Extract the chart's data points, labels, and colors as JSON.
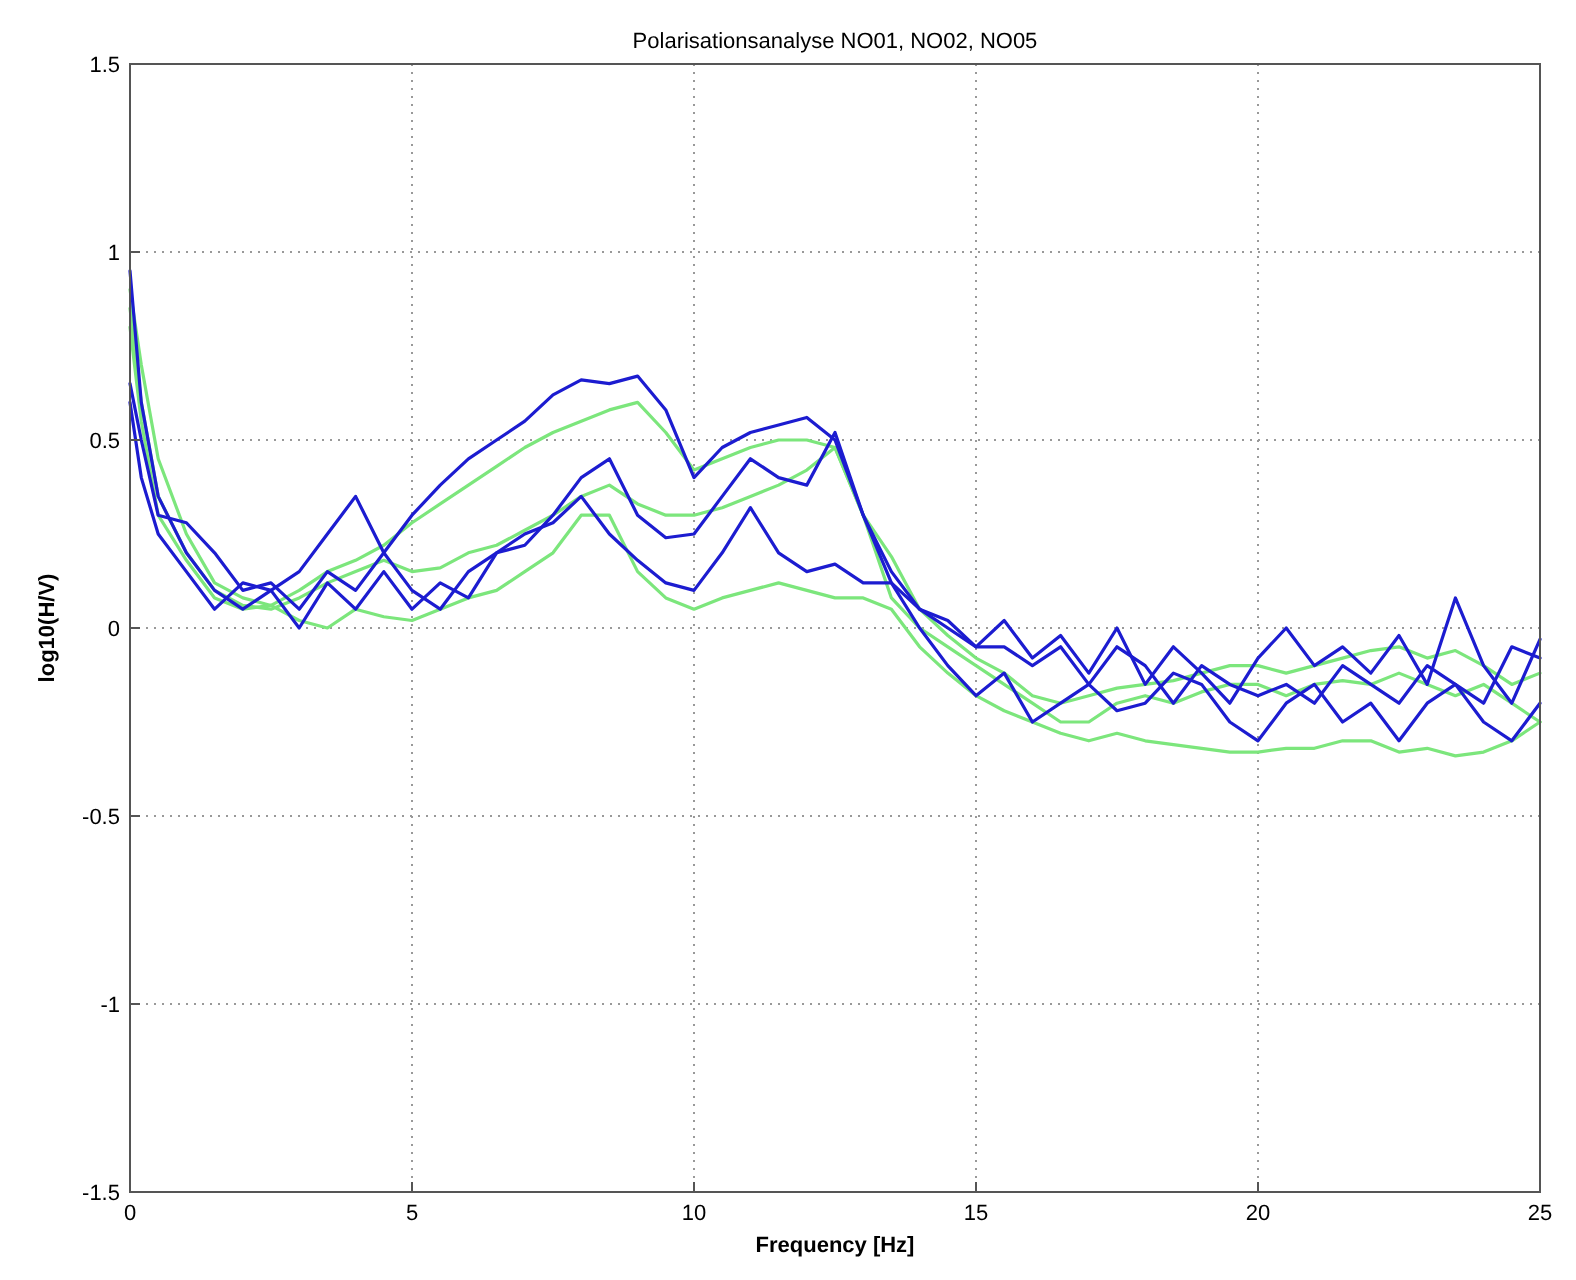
{
  "chart_data": {
    "type": "line",
    "title": "Polarisationsanalyse NO01, NO02, NO05",
    "xlabel": "Frequency [Hz]",
    "ylabel": "log10(H/V)",
    "x": [
      0,
      0.2,
      0.5,
      1,
      1.5,
      2,
      2.5,
      3,
      3.5,
      4,
      4.5,
      5,
      5.5,
      6,
      6.5,
      7,
      7.5,
      8,
      8.5,
      9,
      9.5,
      10,
      10.5,
      11,
      11.5,
      12,
      12.5,
      13,
      13.5,
      14,
      14.5,
      15,
      15.5,
      16,
      16.5,
      17,
      17.5,
      18,
      18.5,
      19,
      19.5,
      20,
      20.5,
      21,
      21.5,
      22,
      22.5,
      23,
      23.5,
      24,
      24.5,
      25
    ],
    "series": [
      {
        "color": "#7ce67c",
        "values": [
          0.9,
          0.7,
          0.45,
          0.25,
          0.12,
          0.08,
          0.06,
          0.1,
          0.15,
          0.18,
          0.22,
          0.28,
          0.33,
          0.38,
          0.43,
          0.48,
          0.52,
          0.55,
          0.58,
          0.6,
          0.52,
          0.42,
          0.45,
          0.48,
          0.5,
          0.5,
          0.48,
          0.3,
          0.19,
          0.05,
          -0.02,
          -0.08,
          -0.12,
          -0.18,
          -0.2,
          -0.18,
          -0.16,
          -0.15,
          -0.14,
          -0.12,
          -0.1,
          -0.1,
          -0.12,
          -0.1,
          -0.08,
          -0.06,
          -0.05,
          -0.08,
          -0.06,
          -0.1,
          -0.15,
          -0.12
        ]
      },
      {
        "color": "#7ce67c",
        "values": [
          0.85,
          0.6,
          0.35,
          0.2,
          0.1,
          0.06,
          0.05,
          0.08,
          0.12,
          0.15,
          0.18,
          0.15,
          0.16,
          0.2,
          0.22,
          0.26,
          0.3,
          0.35,
          0.38,
          0.33,
          0.3,
          0.3,
          0.32,
          0.35,
          0.38,
          0.42,
          0.48,
          0.3,
          0.08,
          0,
          -0.05,
          -0.1,
          -0.15,
          -0.2,
          -0.25,
          -0.25,
          -0.2,
          -0.18,
          -0.2,
          -0.17,
          -0.15,
          -0.15,
          -0.18,
          -0.15,
          -0.14,
          -0.15,
          -0.12,
          -0.15,
          -0.18,
          -0.15,
          -0.2,
          -0.25
        ]
      },
      {
        "color": "#7ce67c",
        "values": [
          0.8,
          0.55,
          0.3,
          0.18,
          0.08,
          0.05,
          0.06,
          0.02,
          0,
          0.05,
          0.03,
          0.02,
          0.05,
          0.08,
          0.1,
          0.15,
          0.2,
          0.3,
          0.3,
          0.15,
          0.08,
          0.05,
          0.08,
          0.1,
          0.12,
          0.1,
          0.08,
          0.08,
          0.05,
          -0.05,
          -0.12,
          -0.18,
          -0.22,
          -0.25,
          -0.28,
          -0.3,
          -0.28,
          -0.3,
          -0.31,
          -0.32,
          -0.33,
          -0.33,
          -0.32,
          -0.32,
          -0.3,
          -0.3,
          -0.33,
          -0.32,
          -0.34,
          -0.33,
          -0.3,
          -0.25
        ]
      },
      {
        "color": "#1c1cd0",
        "values": [
          0.95,
          0.6,
          0.35,
          0.2,
          0.1,
          0.05,
          0.1,
          0.15,
          0.25,
          0.35,
          0.2,
          0.3,
          0.38,
          0.45,
          0.5,
          0.55,
          0.62,
          0.66,
          0.65,
          0.67,
          0.58,
          0.4,
          0.48,
          0.52,
          0.54,
          0.56,
          0.5,
          0.3,
          0.15,
          0.05,
          0.02,
          -0.05,
          -0.05,
          -0.1,
          -0.05,
          -0.15,
          -0.05,
          -0.1,
          -0.2,
          -0.1,
          -0.15,
          -0.18,
          -0.15,
          -0.2,
          -0.1,
          -0.15,
          -0.2,
          -0.1,
          -0.15,
          -0.2,
          -0.05,
          -0.08
        ]
      },
      {
        "color": "#1c1cd0",
        "values": [
          0.65,
          0.5,
          0.3,
          0.28,
          0.2,
          0.1,
          0.12,
          0.05,
          0.15,
          0.1,
          0.2,
          0.1,
          0.05,
          0.15,
          0.2,
          0.22,
          0.3,
          0.4,
          0.45,
          0.3,
          0.24,
          0.25,
          0.35,
          0.45,
          0.4,
          0.38,
          0.52,
          0.3,
          0.12,
          0.05,
          0,
          -0.05,
          0.02,
          -0.08,
          -0.02,
          -0.12,
          0,
          -0.15,
          -0.05,
          -0.12,
          -0.2,
          -0.08,
          0,
          -0.1,
          -0.05,
          -0.12,
          -0.02,
          -0.15,
          0.08,
          -0.1,
          -0.2,
          -0.03
        ]
      },
      {
        "color": "#1c1cd0",
        "values": [
          0.6,
          0.4,
          0.25,
          0.15,
          0.05,
          0.12,
          0.1,
          0,
          0.12,
          0.05,
          0.15,
          0.05,
          0.12,
          0.08,
          0.2,
          0.25,
          0.28,
          0.35,
          0.25,
          0.18,
          0.12,
          0.1,
          0.2,
          0.32,
          0.2,
          0.15,
          0.17,
          0.12,
          0.12,
          0,
          -0.1,
          -0.18,
          -0.12,
          -0.25,
          -0.2,
          -0.15,
          -0.22,
          -0.2,
          -0.12,
          -0.15,
          -0.25,
          -0.3,
          -0.2,
          -0.15,
          -0.25,
          -0.2,
          -0.3,
          -0.2,
          -0.15,
          -0.25,
          -0.3,
          -0.2
        ]
      }
    ],
    "xlim": [
      0,
      25
    ],
    "xticks": [
      0,
      5,
      10,
      15,
      20,
      25
    ],
    "ylim": [
      -1.5,
      1.5
    ],
    "yticks": [
      -1.5,
      -1,
      -0.5,
      0,
      0.5,
      1,
      1.5
    ],
    "grid": true,
    "line_style": "solid"
  }
}
